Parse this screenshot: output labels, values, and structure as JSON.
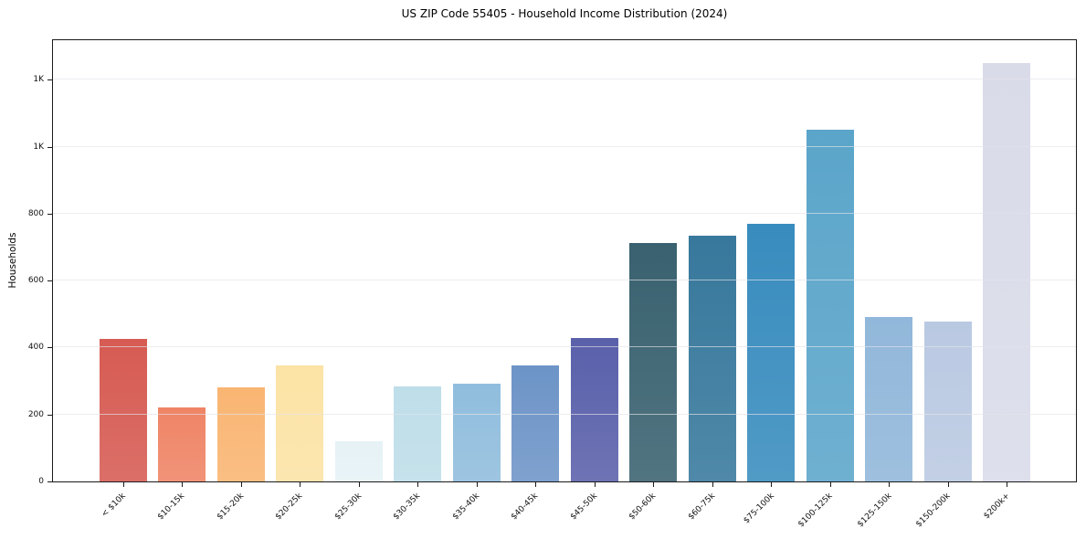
{
  "chart_data": {
    "type": "bar",
    "title": "US ZIP Code 55405 - Household Income Distribution (2024)",
    "xlabel": "",
    "ylabel": "Households",
    "grid": true,
    "legend": false,
    "ylim": [
      0,
      1318
    ],
    "yticks": [
      {
        "value": 0,
        "label": "0"
      },
      {
        "value": 200,
        "label": "200"
      },
      {
        "value": 400,
        "label": "400"
      },
      {
        "value": 600,
        "label": "600"
      },
      {
        "value": 800,
        "label": "800"
      },
      {
        "value": 1000,
        "label": "1K"
      },
      {
        "value": 1200,
        "label": "1K"
      }
    ],
    "categories": [
      "< $10k",
      "$10-15k",
      "$15-20k",
      "$20-25k",
      "$25-30k",
      "$30-35k",
      "$35-40k",
      "$40-45k",
      "$45-50k",
      "$50-60k",
      "$60-75k",
      "$75-100k",
      "$100-125k",
      "$125-150k",
      "$150-200k",
      "$200k+"
    ],
    "values": [
      425,
      222,
      281,
      347,
      121,
      284,
      291,
      346,
      429,
      712,
      734,
      770,
      1050,
      492,
      478,
      1250
    ],
    "bar_colors": [
      "#d65b53",
      "#ef8466",
      "#f9b572",
      "#fce3a5",
      "#e6f2f6",
      "#bedee9",
      "#90bddd",
      "#6d94c7",
      "#5a60aa",
      "#39616f",
      "#37789c",
      "#388cbe",
      "#5ba5ca",
      "#91b7da",
      "#bac9e2",
      "#d9dbe9"
    ]
  },
  "style_colors": {
    "spine": "#1a1a1a",
    "gridline": "#e8e8ec",
    "background": "#ffffff",
    "text": "#111111"
  }
}
